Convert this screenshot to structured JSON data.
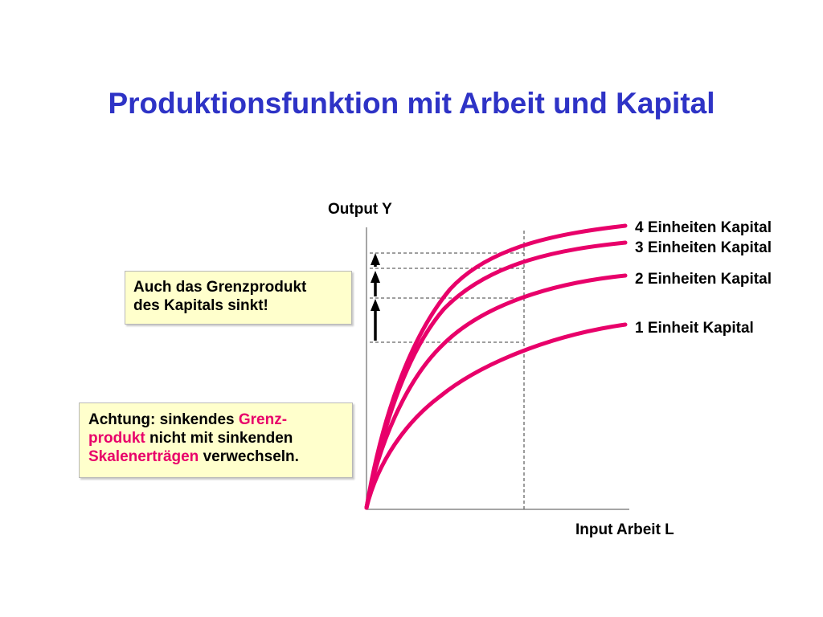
{
  "title": "Produktionsfunktion mit Arbeit und Kapital",
  "colors": {
    "title": "#2e33c6",
    "curve": "#e8006a",
    "box_bg": "#ffffcc"
  },
  "axes": {
    "y_label": "Output Y",
    "x_label": "Input Arbeit L"
  },
  "curves": [
    {
      "label": "4 Einheiten Kapital",
      "level": 4
    },
    {
      "label": "3 Einheiten Kapital",
      "level": 3
    },
    {
      "label": "2 Einheiten Kapital",
      "level": 2
    },
    {
      "label": "1 Einheit Kapital",
      "level": 1
    }
  ],
  "note_box_1": {
    "line1": "Auch das Grenzprodukt",
    "line2": "des Kapitals sinkt!"
  },
  "note_box_2": {
    "line1_a": "Achtung: sinkendes ",
    "line1_b": "Grenz-",
    "line2_a": "produkt",
    "line2_b": " nicht mit sinkenden",
    "line3_a": "Skalenerträgen",
    "line3_b": " verwechseln."
  }
}
